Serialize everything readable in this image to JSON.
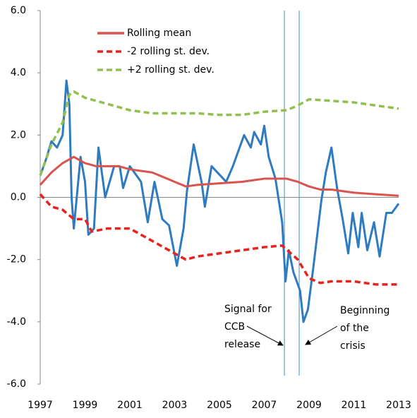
{
  "chart_data": {
    "type": "line",
    "xlim": [
      1997,
      2013
    ],
    "xticks": [
      1997,
      1999,
      2001,
      2003,
      2005,
      2007,
      2009,
      2011,
      2013
    ],
    "ylim": [
      -6,
      6
    ],
    "yticks": [
      {
        "value": -6,
        "label": "-6.0"
      },
      {
        "value": -4,
        "label": "-4.0"
      },
      {
        "value": -2,
        "label": "-2.0"
      },
      {
        "value": 0,
        "label": "0.0"
      },
      {
        "value": 2,
        "label": "2.0"
      },
      {
        "value": 4,
        "label": "4.0"
      },
      {
        "value": 6,
        "label": "6.0"
      }
    ],
    "vlines": [
      2007.9,
      2008.56
    ],
    "annotations": [
      [
        "Signal for",
        "CCB",
        "release"
      ],
      [
        "Beginning",
        "of the",
        "crisis"
      ]
    ],
    "series": [
      {
        "color": "#2e7bbf",
        "style": "solid",
        "x": [
          1997.0,
          1997.25,
          1997.5,
          1997.75,
          1998.0,
          1998.17,
          1998.3,
          1998.4,
          1998.5,
          1998.8,
          1999.0,
          1999.15,
          1999.4,
          1999.6,
          1999.9,
          2000.3,
          2000.55,
          2000.7,
          2001.0,
          2001.5,
          2001.8,
          2002.1,
          2002.45,
          2002.75,
          2003.1,
          2003.4,
          2003.55,
          2003.85,
          2004.2,
          2004.35,
          2004.65,
          2005.3,
          2005.6,
          2006.1,
          2006.4,
          2006.55,
          2006.85,
          2007.0,
          2007.2,
          2007.5,
          2007.8,
          2007.95,
          2008.1,
          2008.3,
          2008.6,
          2008.75,
          2008.95,
          2009.2,
          2009.55,
          2009.75,
          2010.0,
          2010.25,
          2010.5,
          2010.75,
          2010.95,
          2011.2,
          2011.35,
          2011.6,
          2011.9,
          2012.15,
          2012.45,
          2012.7,
          2013.0
        ],
        "values": [
          0.7,
          1.2,
          1.8,
          1.6,
          2.0,
          3.75,
          3.0,
          0.0,
          -1.0,
          1.3,
          0.5,
          -1.2,
          -1.0,
          1.6,
          0.0,
          1.0,
          1.0,
          0.3,
          1.0,
          0.5,
          -0.8,
          0.5,
          -0.7,
          -0.9,
          -2.2,
          -1.0,
          0.2,
          1.7,
          0.5,
          -0.3,
          1.0,
          0.5,
          1.0,
          2.0,
          1.6,
          2.1,
          1.7,
          2.3,
          1.3,
          0.6,
          -0.8,
          -2.7,
          -1.7,
          -2.4,
          -3.0,
          -4.0,
          -3.6,
          -2.2,
          -0.1,
          0.8,
          1.6,
          0.3,
          -0.7,
          -1.8,
          -0.5,
          -1.6,
          -0.5,
          -1.7,
          -0.8,
          -1.9,
          -0.5,
          -0.5,
          -0.2
        ]
      },
      {
        "name": "Rolling mean",
        "color": "#d9534f",
        "style": "solid",
        "x": [
          1997,
          1997.5,
          1998,
          1998.5,
          1999,
          1999.5,
          2000.5,
          2001,
          2002,
          2003,
          2003.5,
          2004,
          2005,
          2006,
          2007,
          2008,
          2008.5,
          2009,
          2009.5,
          2010,
          2011,
          2012,
          2013
        ],
        "values": [
          0.4,
          0.8,
          1.1,
          1.3,
          1.1,
          1.0,
          1.0,
          0.9,
          0.8,
          0.5,
          0.35,
          0.4,
          0.45,
          0.5,
          0.6,
          0.6,
          0.5,
          0.35,
          0.25,
          0.25,
          0.15,
          0.1,
          0.05
        ]
      },
      {
        "name": "-2 rolling st. dev.",
        "color": "#e8231d",
        "style": "dashed",
        "x": [
          1997,
          1997.5,
          1998,
          1998.5,
          1999,
          1999.3,
          2000,
          2001,
          2002,
          2003,
          2003.5,
          2004,
          2005,
          2006,
          2007,
          2007.8,
          2008.5,
          2009,
          2009.5,
          2010,
          2011,
          2012,
          2013
        ],
        "values": [
          0.1,
          -0.3,
          -0.4,
          -0.7,
          -0.7,
          -1.1,
          -1.0,
          -1.0,
          -1.4,
          -1.8,
          -2.0,
          -1.9,
          -1.8,
          -1.7,
          -1.6,
          -1.55,
          -2.0,
          -2.6,
          -2.75,
          -2.7,
          -2.7,
          -2.8,
          -2.8
        ]
      },
      {
        "name": "+2 rolling st. dev.",
        "color": "#92c050",
        "style": "dashed",
        "x": [
          1997,
          1997.5,
          1998,
          1998.3,
          1998.5,
          1999,
          2000,
          2001,
          2002,
          2003,
          2004,
          2005,
          2006,
          2007,
          2008,
          2008.5,
          2009,
          2010,
          2011,
          2012,
          2013
        ],
        "values": [
          0.7,
          1.7,
          2.4,
          3.3,
          3.4,
          3.2,
          3.0,
          2.8,
          2.7,
          2.7,
          2.7,
          2.65,
          2.65,
          2.75,
          2.8,
          2.95,
          3.15,
          3.1,
          3.05,
          2.95,
          2.85
        ]
      }
    ]
  }
}
